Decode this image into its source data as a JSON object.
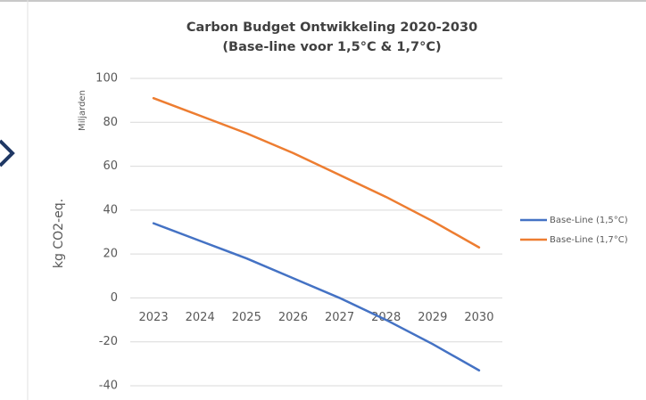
{
  "chart_data": {
    "type": "line",
    "title": "Carbon Budget Ontwikkeling 2020-2030",
    "subtitle": "(Base-line voor 1,5°C & 1,7°C)",
    "y_label": "kg CO2-eq.",
    "y_unit": "Miljarden",
    "categories": [
      "2023",
      "2024",
      "2025",
      "2026",
      "2027",
      "2028",
      "2029",
      "2030"
    ],
    "series": [
      {
        "name": "Base-Line (1,5°C)",
        "color": "#4472c4",
        "values": [
          34,
          26,
          18,
          9,
          0,
          -10,
          -21,
          -33
        ]
      },
      {
        "name": "Base-Line (1,7°C)",
        "color": "#ed7d31",
        "values": [
          91,
          83,
          75,
          66,
          56,
          46,
          35,
          23
        ]
      }
    ],
    "ylim": [
      -40,
      100
    ],
    "yticks": [
      -40,
      -20,
      0,
      20,
      40,
      60,
      80,
      100
    ],
    "grid": true,
    "legend": "right"
  }
}
